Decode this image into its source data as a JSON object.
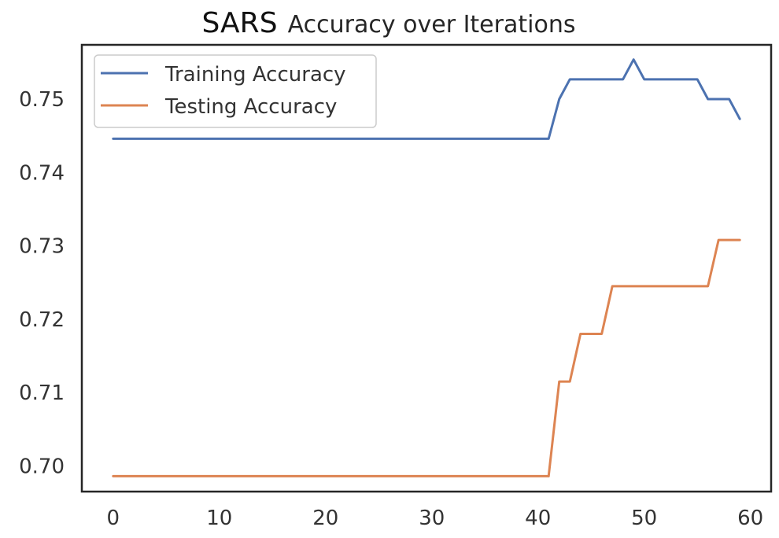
{
  "chart_data": {
    "type": "line",
    "title": {
      "lead": "SARS",
      "rest": "Accuracy over Iterations"
    },
    "xlabel": "",
    "ylabel": "",
    "xlim": [
      -2.95,
      61.95
    ],
    "ylim": [
      0.6965,
      0.7574
    ],
    "x_ticks": [
      0,
      10,
      20,
      30,
      40,
      50,
      60
    ],
    "y_ticks": [
      0.7,
      0.71,
      0.72,
      0.73,
      0.74,
      0.75
    ],
    "y_tick_labels": [
      "0.70",
      "0.71",
      "0.72",
      "0.73",
      "0.74",
      "0.75"
    ],
    "grid": false,
    "legend_position": "top-left",
    "series": [
      {
        "name": "Training Accuracy",
        "color": "#4c72b0",
        "x": [
          0,
          1,
          2,
          3,
          4,
          5,
          6,
          7,
          8,
          9,
          10,
          11,
          12,
          13,
          14,
          15,
          16,
          17,
          18,
          19,
          20,
          21,
          22,
          23,
          24,
          25,
          26,
          27,
          28,
          29,
          30,
          31,
          32,
          33,
          34,
          35,
          36,
          37,
          38,
          39,
          40,
          41,
          42,
          43,
          44,
          45,
          46,
          47,
          48,
          49,
          50,
          51,
          52,
          53,
          54,
          55,
          56,
          57,
          58,
          59
        ],
        "values": [
          0.7446,
          0.7446,
          0.7446,
          0.7446,
          0.7446,
          0.7446,
          0.7446,
          0.7446,
          0.7446,
          0.7446,
          0.7446,
          0.7446,
          0.7446,
          0.7446,
          0.7446,
          0.7446,
          0.7446,
          0.7446,
          0.7446,
          0.7446,
          0.7446,
          0.7446,
          0.7446,
          0.7446,
          0.7446,
          0.7446,
          0.7446,
          0.7446,
          0.7446,
          0.7446,
          0.7446,
          0.7446,
          0.7446,
          0.7446,
          0.7446,
          0.7446,
          0.7446,
          0.7446,
          0.7446,
          0.7446,
          0.7446,
          0.7446,
          0.75,
          0.7527,
          0.7527,
          0.7527,
          0.7527,
          0.7527,
          0.7527,
          0.7554,
          0.7527,
          0.7527,
          0.7527,
          0.7527,
          0.7527,
          0.7527,
          0.75,
          0.75,
          0.75,
          0.7473
        ]
      },
      {
        "name": "Testing Accuracy",
        "color": "#dd8452",
        "x": [
          0,
          1,
          2,
          3,
          4,
          5,
          6,
          7,
          8,
          9,
          10,
          11,
          12,
          13,
          14,
          15,
          16,
          17,
          18,
          19,
          20,
          21,
          22,
          23,
          24,
          25,
          26,
          27,
          28,
          29,
          30,
          31,
          32,
          33,
          34,
          35,
          36,
          37,
          38,
          39,
          40,
          41,
          42,
          43,
          44,
          45,
          46,
          47,
          48,
          49,
          50,
          51,
          52,
          53,
          54,
          55,
          56,
          57,
          58,
          59
        ],
        "values": [
          0.6986,
          0.6986,
          0.6986,
          0.6986,
          0.6986,
          0.6986,
          0.6986,
          0.6986,
          0.6986,
          0.6986,
          0.6986,
          0.6986,
          0.6986,
          0.6986,
          0.6986,
          0.6986,
          0.6986,
          0.6986,
          0.6986,
          0.6986,
          0.6986,
          0.6986,
          0.6986,
          0.6986,
          0.6986,
          0.6986,
          0.6986,
          0.6986,
          0.6986,
          0.6986,
          0.6986,
          0.6986,
          0.6986,
          0.6986,
          0.6986,
          0.6986,
          0.6986,
          0.6986,
          0.6986,
          0.6986,
          0.6986,
          0.6986,
          0.7115,
          0.7115,
          0.718,
          0.718,
          0.718,
          0.7245,
          0.7245,
          0.7245,
          0.7245,
          0.7245,
          0.7245,
          0.7245,
          0.7245,
          0.7245,
          0.7245,
          0.7308,
          0.7308,
          0.7308
        ]
      }
    ]
  }
}
